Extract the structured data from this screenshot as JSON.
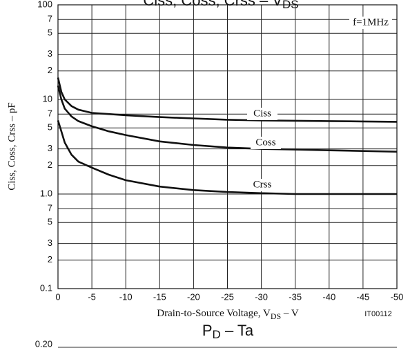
{
  "chart_data": [
    {
      "type": "line",
      "title": {
        "text": "Ciss, Coss, Crss  –  V",
        "sub": "DS"
      },
      "x_label": {
        "text": "Drain-to-Source Voltage, V",
        "sub": "DS",
        "rest": "  –  V"
      },
      "y_label": "Ciss, Coss, Crss  –  pF",
      "code": "IT00112",
      "condition": "f=1MHz",
      "log_y": true,
      "grid": true,
      "xlim": [
        0,
        -50
      ],
      "xticks": [
        0,
        -5,
        -10,
        -15,
        -20,
        -25,
        -30,
        -35,
        -40,
        -45,
        -50
      ],
      "ylim": [
        0.1,
        100
      ],
      "yticks": [
        0.1,
        {
          "value": 0.2,
          "label": "2"
        },
        {
          "value": 0.3,
          "label": "3"
        },
        {
          "value": 0.5,
          "label": "5"
        },
        {
          "value": 0.7,
          "label": "7"
        },
        {
          "value": 1,
          "label": "1.0"
        },
        {
          "value": 2,
          "label": "2"
        },
        {
          "value": 3,
          "label": "3"
        },
        {
          "value": 5,
          "label": "5"
        },
        {
          "value": 7,
          "label": "7"
        },
        10,
        {
          "value": 20,
          "label": "2"
        },
        {
          "value": 30,
          "label": "3"
        },
        {
          "value": 50,
          "label": "5"
        },
        {
          "value": 70,
          "label": "7"
        },
        100
      ],
      "x": [
        0,
        -0.5,
        -1,
        -2,
        -3,
        -5,
        -7.5,
        -10,
        -15,
        -20,
        -25,
        -30,
        -35,
        -40,
        -45,
        -50
      ],
      "series": [
        {
          "name": "Ciss",
          "color": "#111111",
          "values": [
            17,
            12,
            10,
            8.5,
            7.8,
            7.2,
            7.0,
            6.8,
            6.5,
            6.3,
            6.1,
            6.0,
            5.95,
            5.9,
            5.85,
            5.8
          ]
        },
        {
          "name": "Coss",
          "color": "#111111",
          "values": [
            14,
            10,
            8,
            6.6,
            5.9,
            5.2,
            4.6,
            4.2,
            3.6,
            3.3,
            3.1,
            3.0,
            2.95,
            2.9,
            2.85,
            2.8
          ]
        },
        {
          "name": "Crss",
          "color": "#111111",
          "values": [
            6,
            4.6,
            3.5,
            2.6,
            2.2,
            1.9,
            1.6,
            1.4,
            1.2,
            1.1,
            1.05,
            1.02,
            1.0,
            1.0,
            1.0,
            1.0
          ]
        }
      ]
    },
    {
      "type": "line",
      "title": {
        "text": "P",
        "sub": "D",
        "rest": "  –  Ta"
      },
      "yticks": [
        {
          "value": 0.2,
          "label": "0.20"
        }
      ]
    }
  ]
}
